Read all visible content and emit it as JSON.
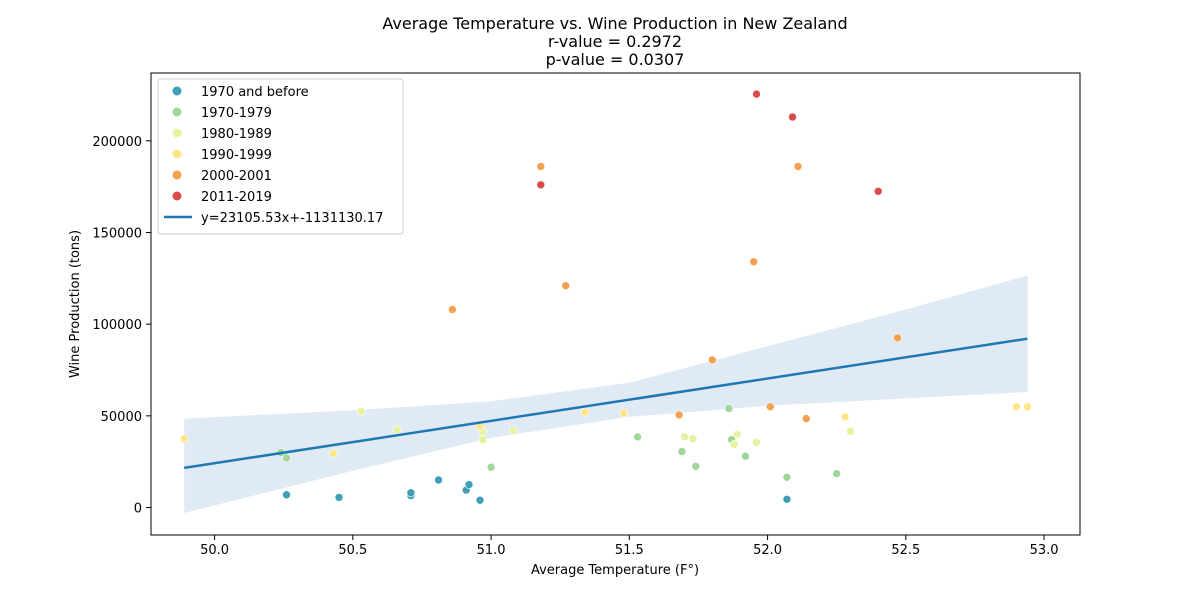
{
  "chart_data": {
    "type": "scatter",
    "title": [
      "Average Temperature vs. Wine Production in New Zealand",
      "r-value = 0.2972",
      "p-value = 0.0307"
    ],
    "xlabel": "Average Temperature (F°)",
    "ylabel": "Wine Production (tons)",
    "xlim": [
      49.77,
      53.13
    ],
    "ylim": [
      -15000,
      237000
    ],
    "xticks": [
      50.0,
      50.5,
      51.0,
      51.5,
      52.0,
      52.5,
      53.0
    ],
    "xtick_labels": [
      "50.0",
      "50.5",
      "51.0",
      "51.5",
      "52.0",
      "52.5",
      "53.0"
    ],
    "yticks": [
      0,
      50000,
      100000,
      150000,
      200000
    ],
    "ytick_labels": [
      "0",
      "50000",
      "100000",
      "150000",
      "200000"
    ],
    "grid": false,
    "legend_position": "upper left",
    "series": [
      {
        "name": "1970 and before",
        "color": "#3f9fb5",
        "points": [
          [
            50.26,
            7000
          ],
          [
            50.45,
            5500
          ],
          [
            50.71,
            6500
          ],
          [
            50.71,
            8000
          ],
          [
            50.81,
            15000
          ],
          [
            50.91,
            9500
          ],
          [
            50.92,
            12500
          ],
          [
            50.96,
            4000
          ],
          [
            52.07,
            4500
          ]
        ]
      },
      {
        "name": "1970-1979",
        "color": "#9fd69b",
        "points": [
          [
            50.24,
            30000
          ],
          [
            50.26,
            27000
          ],
          [
            51.0,
            22000
          ],
          [
            51.53,
            38500
          ],
          [
            51.69,
            30500
          ],
          [
            51.74,
            22500
          ],
          [
            51.87,
            37000
          ],
          [
            51.92,
            28000
          ],
          [
            52.07,
            16500
          ],
          [
            52.25,
            18500
          ],
          [
            51.86,
            54000
          ]
        ]
      },
      {
        "name": "1980-1989",
        "color": "#e5f2a0",
        "points": [
          [
            50.53,
            52500
          ],
          [
            50.66,
            42500
          ],
          [
            50.97,
            41500
          ],
          [
            50.97,
            37000
          ],
          [
            51.08,
            42000
          ],
          [
            51.7,
            38500
          ],
          [
            51.73,
            37500
          ],
          [
            51.89,
            40000
          ],
          [
            51.96,
            35500
          ],
          [
            52.3,
            41500
          ],
          [
            51.88,
            34500
          ]
        ]
      },
      {
        "name": "1990-1999",
        "color": "#fde68a",
        "points": [
          [
            49.89,
            37500
          ],
          [
            50.43,
            29500
          ],
          [
            50.96,
            44000
          ],
          [
            51.34,
            52000
          ],
          [
            51.48,
            51500
          ],
          [
            52.28,
            49500
          ],
          [
            52.9,
            55000
          ],
          [
            52.94,
            55000
          ]
        ]
      },
      {
        "name": "2000-2001",
        "color": "#f3a050",
        "points": [
          [
            50.86,
            108000
          ],
          [
            51.18,
            186000
          ],
          [
            51.27,
            121000
          ],
          [
            51.68,
            50500
          ],
          [
            51.8,
            80500
          ],
          [
            51.95,
            134000
          ],
          [
            52.01,
            55000
          ],
          [
            52.11,
            186000
          ],
          [
            52.14,
            48500
          ],
          [
            52.47,
            92500
          ]
        ]
      },
      {
        "name": "2011-2019",
        "color": "#dc4b4b",
        "points": [
          [
            51.18,
            176000
          ],
          [
            51.96,
            225500
          ],
          [
            52.09,
            213000
          ],
          [
            52.4,
            172500
          ]
        ]
      }
    ],
    "regression": {
      "name": "y=23105.53x+-1131130.17",
      "slope": 23105.53,
      "intercept": -1131130.17,
      "x_range": [
        49.89,
        52.94
      ],
      "color": "#1f77b4",
      "ci_band_color": "#dbe8f3",
      "ci_band": [
        {
          "x": 49.89,
          "lo": -3000,
          "hi": 48500
        },
        {
          "x": 50.5,
          "lo": 20000,
          "hi": 53000
        },
        {
          "x": 51.0,
          "lo": 38000,
          "hi": 58000
        },
        {
          "x": 51.5,
          "lo": 49500,
          "hi": 68000
        },
        {
          "x": 52.0,
          "lo": 55500,
          "hi": 88000
        },
        {
          "x": 52.5,
          "lo": 59500,
          "hi": 108000
        },
        {
          "x": 52.94,
          "lo": 63000,
          "hi": 126500
        }
      ]
    }
  }
}
